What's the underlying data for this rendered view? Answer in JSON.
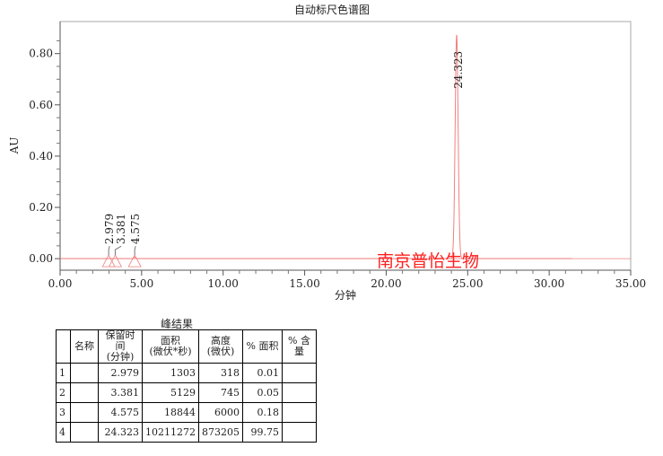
{
  "chart_data": {
    "type": "line",
    "title": "自动标尺色谱图",
    "xlabel": "分钟",
    "ylabel": "AU",
    "xlim": [
      0,
      35
    ],
    "ylim": [
      -0.045,
      0.925
    ],
    "xticks": [
      "0.00",
      "5.00",
      "10.00",
      "15.00",
      "20.00",
      "25.00",
      "30.00",
      "35.00"
    ],
    "yticks": [
      "0.00",
      "0.20",
      "0.40",
      "0.60",
      "0.80"
    ],
    "grid": false,
    "line_color": "#f08080",
    "peaks": [
      {
        "rt": 2.979,
        "label": "2.979",
        "height": 0.000318
      },
      {
        "rt": 3.381,
        "label": "3.381",
        "height": 0.000745
      },
      {
        "rt": 4.575,
        "label": "4.575",
        "height": 0.006
      },
      {
        "rt": 24.323,
        "label": "24.323",
        "height": 0.873205
      }
    ],
    "watermark": "南京普怡生物",
    "watermark_color": "#ff2020"
  },
  "table": {
    "title": "峰结果",
    "headers": [
      "",
      "名称",
      "保留时间\n(分钟)",
      "面积\n(微伏*秒)",
      "高度\n(微伏)",
      "% 面积",
      "% 含量"
    ],
    "rows": [
      [
        "1",
        "",
        "2.979",
        "1303",
        "318",
        "0.01",
        ""
      ],
      [
        "2",
        "",
        "3.381",
        "5129",
        "745",
        "0.05",
        ""
      ],
      [
        "3",
        "",
        "4.575",
        "18844",
        "6000",
        "0.18",
        ""
      ],
      [
        "4",
        "",
        "24.323",
        "10211272",
        "873205",
        "99.75",
        ""
      ]
    ]
  }
}
